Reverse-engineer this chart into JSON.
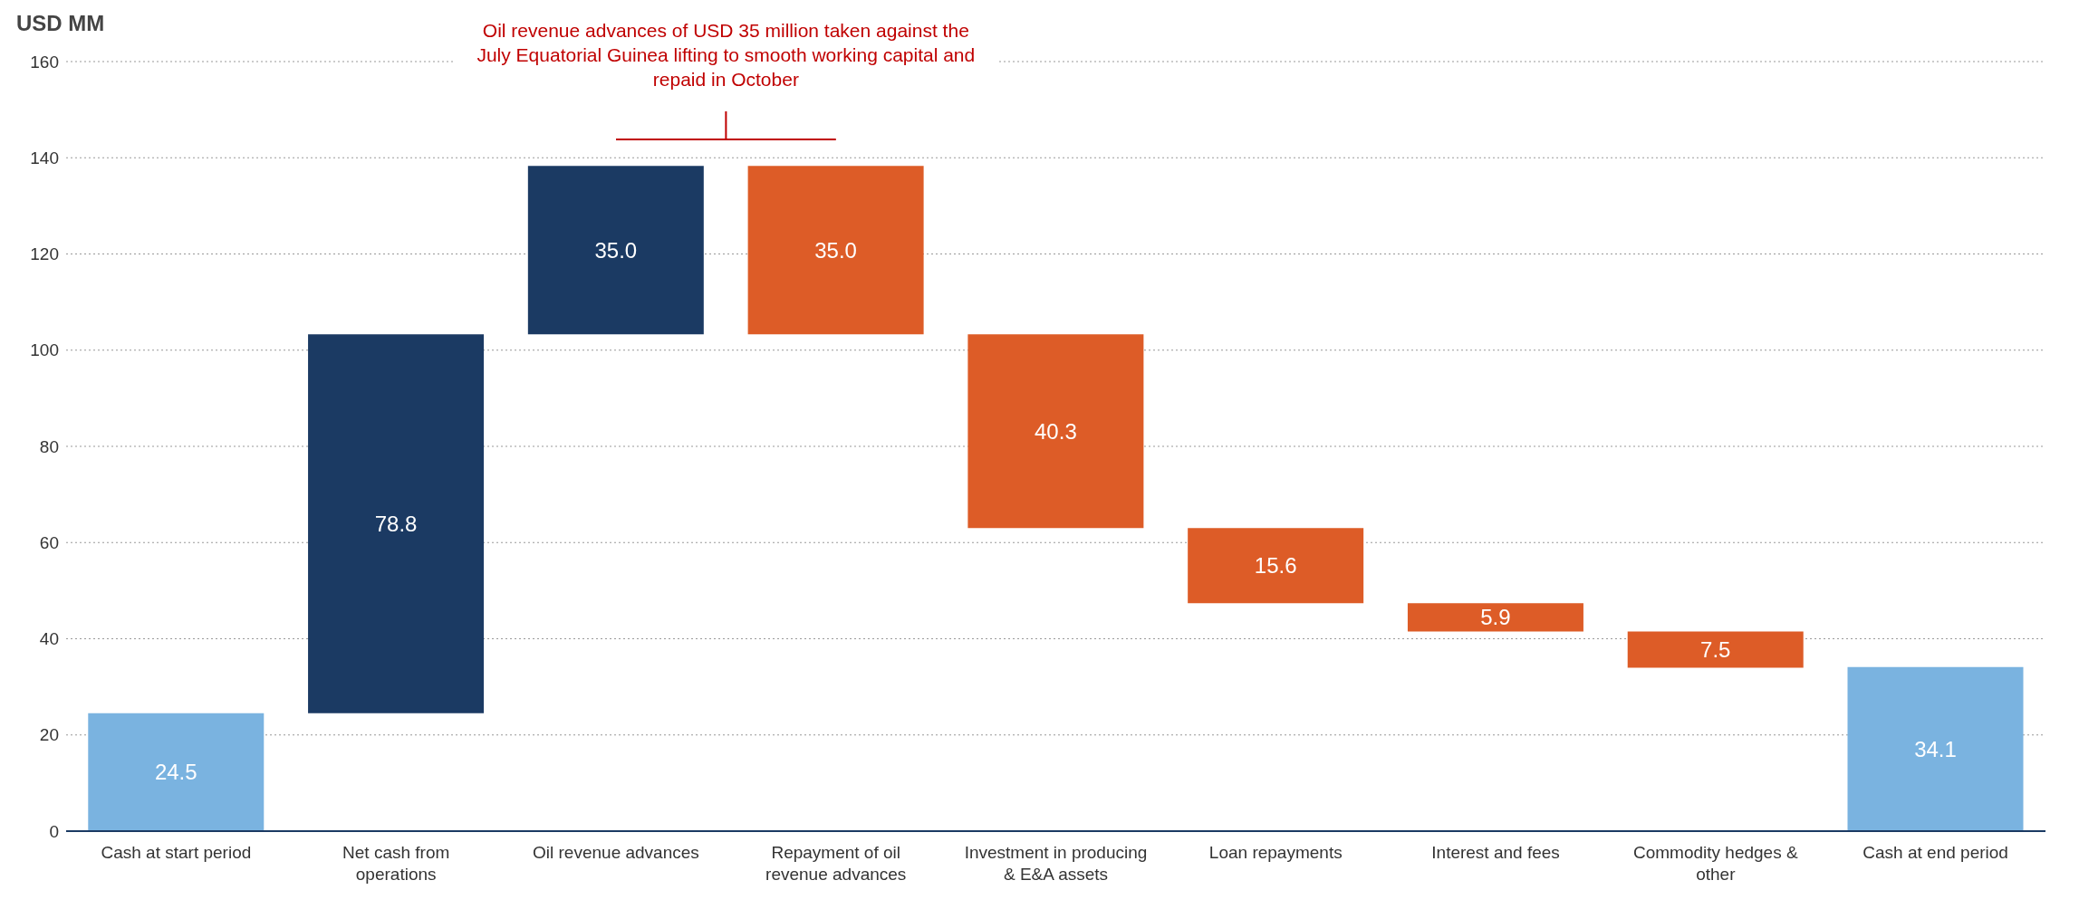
{
  "chart_data": {
    "type": "bar",
    "ylabel": "USD MM",
    "categories": [
      "Cash at start period",
      "Net cash from operations",
      "Oil revenue advances",
      "Repayment of oil revenue advances",
      "Investment in producing & E&A assets",
      "Loan repayments",
      "Interest and fees",
      "Commodity hedges & other",
      "Cash at end period"
    ],
    "values": [
      24.5,
      78.8,
      35.0,
      35.0,
      40.3,
      15.6,
      5.9,
      7.5,
      34.1
    ],
    "base": [
      0,
      24.5,
      103.3,
      103.3,
      63.0,
      47.4,
      41.5,
      34.0,
      0
    ],
    "colors": [
      "#7ab3e0",
      "#1b3a63",
      "#1b3a63",
      "#dd5c27",
      "#dd5c27",
      "#dd5c27",
      "#dd5c27",
      "#dd5c27",
      "#7ab3e0"
    ],
    "value_labels": [
      "24.5",
      "78.8",
      "35.0",
      "35.0",
      "40.3",
      "15.6",
      "5.9",
      "7.5",
      "34.1"
    ],
    "ylim": [
      0,
      160
    ],
    "yticks": [
      0,
      20,
      40,
      60,
      80,
      100,
      120,
      140,
      160
    ],
    "grid": "y",
    "annotations": [
      "Oil revenue advances of USD 35 million taken against the July Equatorial Guinea lifting to smooth working capital and repaid in October"
    ]
  }
}
